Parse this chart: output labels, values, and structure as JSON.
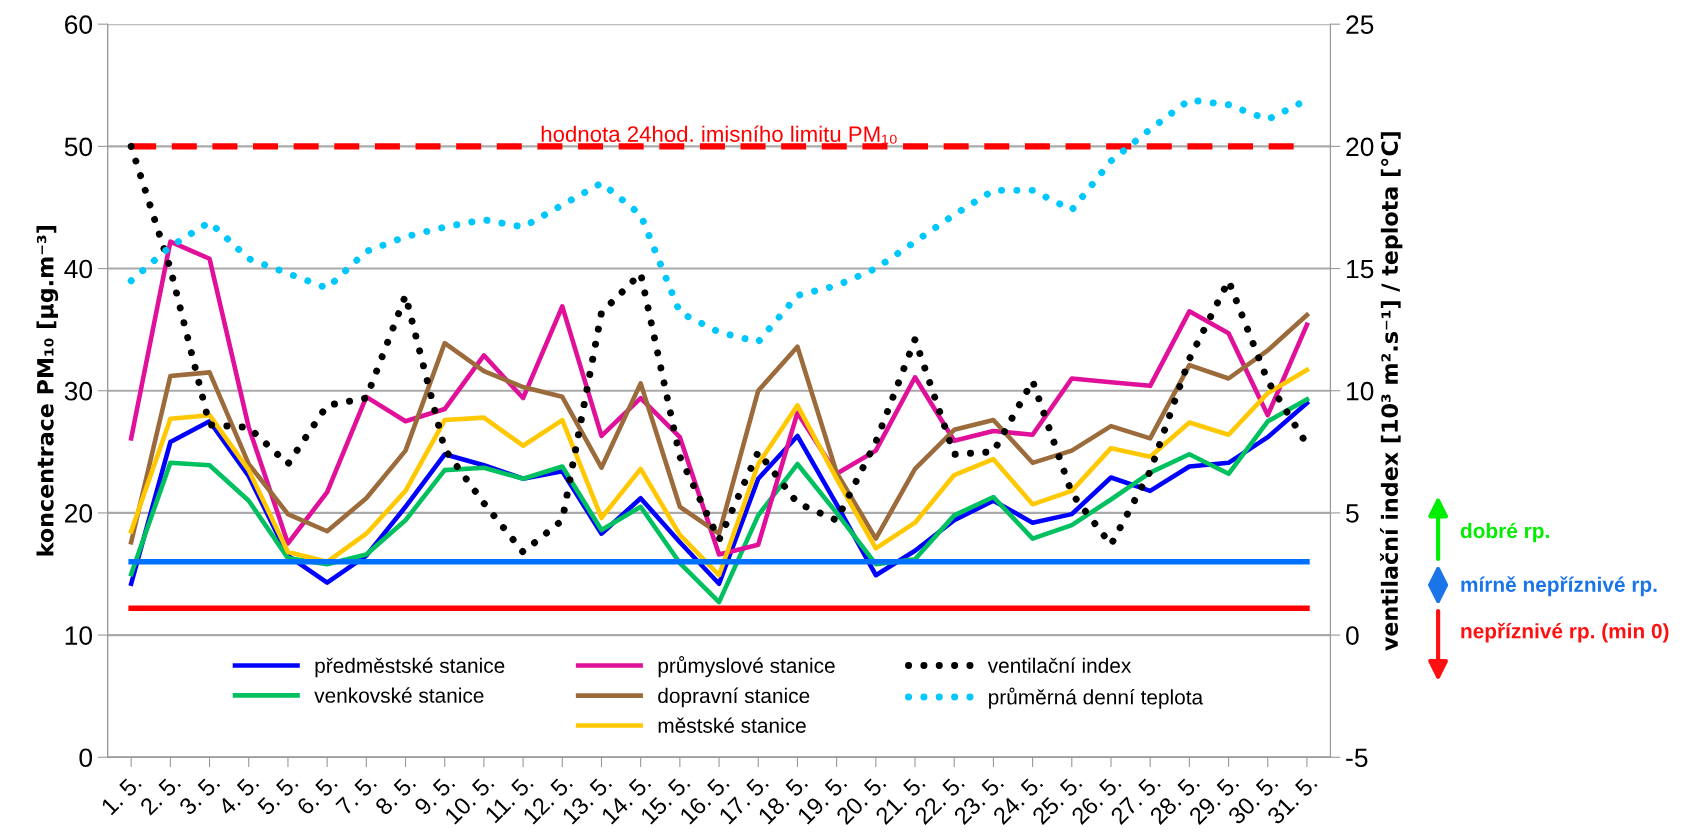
{
  "chart_data": {
    "type": "line",
    "ylabel": "koncentrace PM₁₀ [µg.m⁻³]",
    "y2label": "ventilační index [10³ m².s⁻¹] / teplota [°C]",
    "categories": [
      "1. 5.",
      "2. 5.",
      "3. 5.",
      "4. 5.",
      "5. 5.",
      "6. 5.",
      "7. 5.",
      "8. 5.",
      "9. 5.",
      "10. 5.",
      "11. 5.",
      "12. 5.",
      "13. 5.",
      "14. 5.",
      "15. 5.",
      "16. 5.",
      "17. 5.",
      "18. 5.",
      "19. 5.",
      "20. 5.",
      "21. 5.",
      "22. 5.",
      "23. 5.",
      "24. 5.",
      "25. 5.",
      "26. 5.",
      "27. 5.",
      "28. 5.",
      "29. 5.",
      "30. 5.",
      "31. 5."
    ],
    "series": [
      {
        "name": "předměstské stanice",
        "color": "#0000ff",
        "values": [
          14.2,
          25.8,
          27.5,
          23,
          16.5,
          14.3,
          16.5,
          20.5,
          24.8,
          23.9,
          22.8,
          23.4,
          18.3,
          21.2,
          17.6,
          14.2,
          22.8,
          26.3,
          20.7,
          14.9,
          16.9,
          19.4,
          21,
          19.2,
          19.9,
          22.9,
          21.8,
          23.8,
          24.1,
          26.2,
          29
        ]
      },
      {
        "name": "venkovské stanice",
        "color": "#00c060",
        "values": [
          15,
          24.1,
          23.9,
          21,
          16.3,
          15.8,
          16.6,
          19.4,
          23.5,
          23.7,
          22.8,
          23.8,
          18.6,
          20.5,
          15.9,
          12.7,
          19.8,
          24,
          20,
          15.8,
          16.2,
          19.8,
          21.3,
          17.9,
          19,
          21.1,
          23.3,
          24.8,
          23.2,
          27.5,
          29.3
        ]
      },
      {
        "name": "průmyslové stanice",
        "color": "#e0109a",
        "values": [
          26.1,
          42.2,
          40.8,
          27,
          17.5,
          21.7,
          29.5,
          27.5,
          28.5,
          32.9,
          29.4,
          36.9,
          26.3,
          29.4,
          26.2,
          16.6,
          17.4,
          28.2,
          23.2,
          25.1,
          31.1,
          25.9,
          26.7,
          26.4,
          31,
          30.7,
          30.4,
          36.5,
          34.7,
          28,
          35.4
        ]
      },
      {
        "name": "dopravní stanice",
        "color": "#9c6b3c",
        "values": [
          17.6,
          31.2,
          31.5,
          24,
          19.9,
          18.5,
          21.2,
          25.1,
          33.9,
          31.6,
          30.3,
          29.5,
          23.7,
          30.6,
          20.5,
          18.3,
          30,
          33.6,
          23.3,
          17.9,
          23.6,
          26.8,
          27.6,
          24.1,
          25.1,
          27.1,
          26.1,
          32.1,
          31,
          33.3,
          36.2
        ]
      },
      {
        "name": "městské stanice",
        "color": "#ffc800",
        "values": [
          18.5,
          27.7,
          28,
          23.5,
          16.8,
          16,
          18.3,
          21.8,
          27.6,
          27.8,
          25.5,
          27.6,
          19.6,
          23.6,
          18.2,
          14.9,
          24,
          28.8,
          22.8,
          17.1,
          19.2,
          23.1,
          24.4,
          20.7,
          21.8,
          25.3,
          24.6,
          27.4,
          26.4,
          29.8,
          31.7
        ]
      },
      {
        "name": "ventilační index",
        "color": "#000000",
        "axis": "y2",
        "line_style": "dotted",
        "values": [
          20,
          15,
          8.6,
          8.5,
          7,
          9.4,
          9.7,
          13.9,
          7.6,
          5.4,
          3.4,
          4.7,
          13.2,
          14.8,
          7.3,
          3.9,
          7.5,
          5.4,
          4.7,
          7.9,
          12.1,
          7.4,
          7.5,
          10.4,
          5.8,
          3.7,
          6.7,
          11.3,
          14.5,
          10.4,
          7.8
        ]
      },
      {
        "name": "průměrná denní teplota",
        "color": "#00c8ff",
        "axis": "y2",
        "line_style": "dotted",
        "values": [
          14.5,
          15.9,
          16.9,
          15.4,
          14.8,
          14.2,
          15.7,
          16.3,
          16.7,
          17,
          16.7,
          17.6,
          18.5,
          17.2,
          13.2,
          12.4,
          12,
          13.9,
          14.3,
          15,
          16.1,
          17.2,
          18.2,
          18.2,
          17.4,
          19.4,
          20.7,
          21.9,
          21.7,
          21.1,
          21.9
        ]
      }
    ],
    "ylim": [
      0,
      60
    ],
    "yticks": [
      0,
      10,
      20,
      30,
      40,
      50,
      60
    ],
    "y2lim": [
      -5,
      25
    ],
    "y2ticks": [
      -5,
      0,
      5,
      10,
      15,
      20,
      25
    ],
    "ref_lines": [
      {
        "axis": "y",
        "value": 50,
        "label": "hodnota 24hod. imisního limitu PM₁₀",
        "color": "#ff0000",
        "line_style": "dashed"
      },
      {
        "axis": "y2",
        "value": 3,
        "color": "#0070ff",
        "line_style": "solid"
      },
      {
        "axis": "y2",
        "value": 1.1,
        "color": "#ff0000",
        "line_style": "solid"
      }
    ],
    "annotations": [
      "dobré rp.",
      "mírně nepříznivé rp.",
      "nepříznivé rp. (min 0)"
    ],
    "grid": "y",
    "legend": "bottom",
    "line_style": "solid",
    "marker": "none"
  }
}
